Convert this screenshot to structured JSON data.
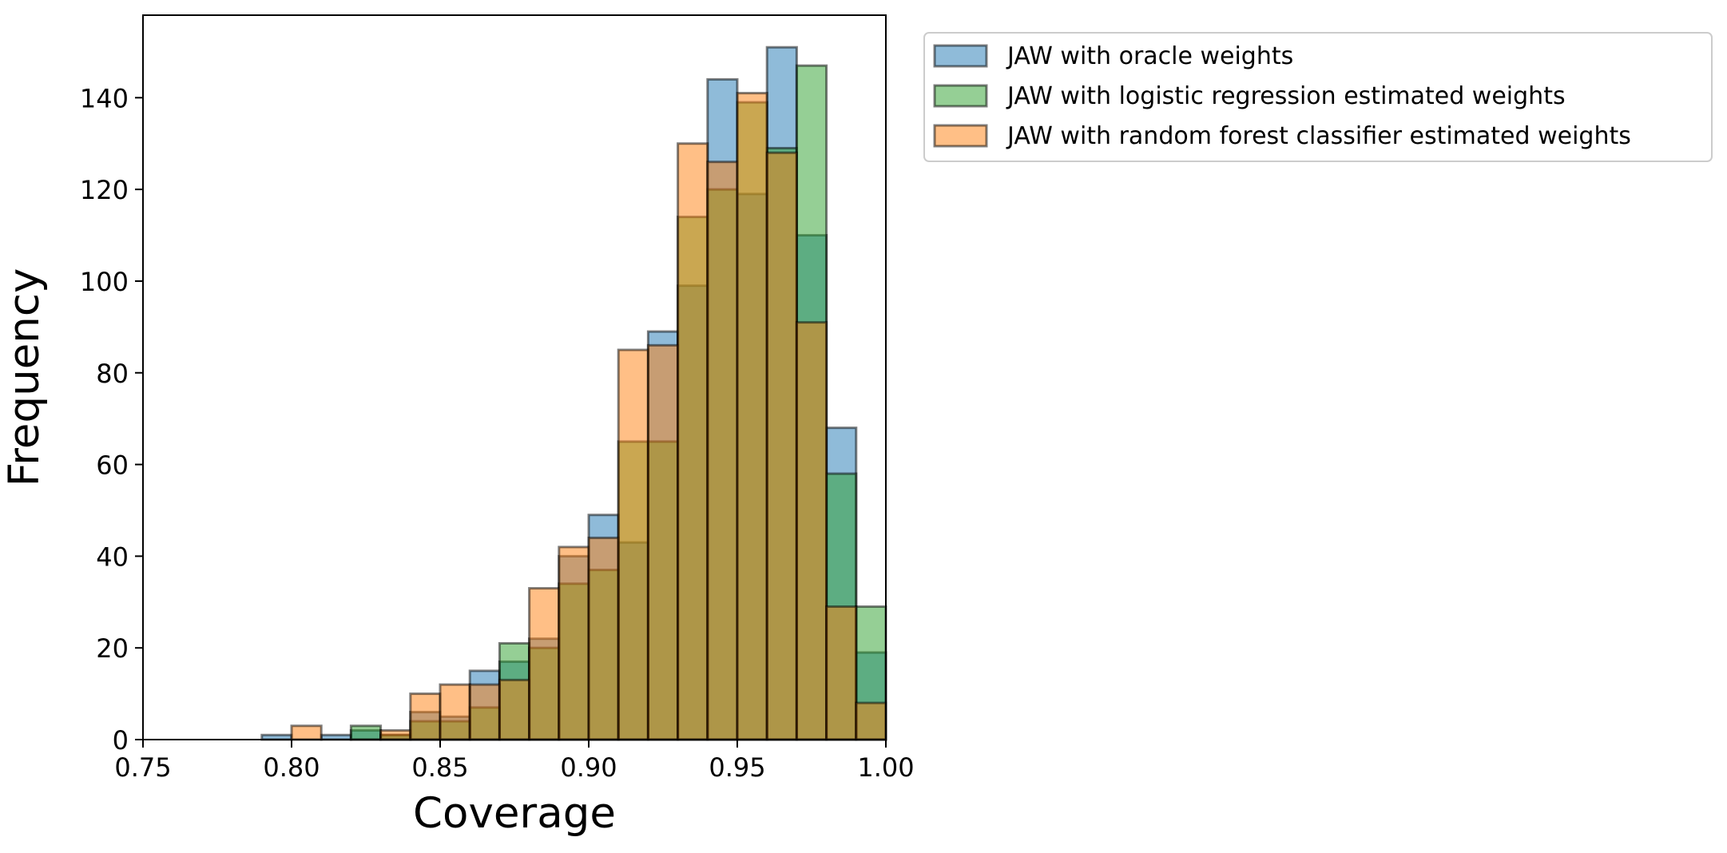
{
  "chart_data": {
    "type": "histogram",
    "title": "",
    "xlabel": "Coverage",
    "ylabel": "Frequency",
    "xlim": [
      0.75,
      1.0
    ],
    "ylim": [
      0,
      158
    ],
    "xticks": [
      0.75,
      0.8,
      0.85,
      0.9,
      0.95,
      1.0
    ],
    "xtick_labels": [
      "0.75",
      "0.80",
      "0.85",
      "0.90",
      "0.95",
      "1.00"
    ],
    "yticks": [
      0,
      20,
      40,
      60,
      80,
      100,
      120,
      140
    ],
    "ytick_labels": [
      "0",
      "20",
      "40",
      "60",
      "80",
      "100",
      "120",
      "140"
    ],
    "grid": false,
    "legend_position": "outside-top-right",
    "series": [
      {
        "name": "JAW with oracle weights",
        "color": "#1f77b4",
        "alpha": 0.5,
        "bins": [
          [
            0.79,
            0.8,
            1
          ],
          [
            0.81,
            0.82,
            1
          ],
          [
            0.82,
            0.83,
            2
          ],
          [
            0.83,
            0.84,
            1
          ],
          [
            0.84,
            0.85,
            6
          ],
          [
            0.85,
            0.86,
            5
          ],
          [
            0.86,
            0.87,
            15
          ],
          [
            0.87,
            0.88,
            17
          ],
          [
            0.88,
            0.89,
            22
          ],
          [
            0.89,
            0.9,
            40
          ],
          [
            0.9,
            0.91,
            49
          ],
          [
            0.91,
            0.92,
            43
          ],
          [
            0.92,
            0.93,
            89
          ],
          [
            0.93,
            0.94,
            99
          ],
          [
            0.94,
            0.95,
            144
          ],
          [
            0.95,
            0.96,
            119
          ],
          [
            0.96,
            0.97,
            151
          ],
          [
            0.97,
            0.98,
            110
          ],
          [
            0.98,
            0.99,
            68
          ],
          [
            0.99,
            1.0,
            19
          ]
        ]
      },
      {
        "name": "JAW with logistic regression estimated weights",
        "color": "#2ca02c",
        "alpha": 0.5,
        "bins": [
          [
            0.82,
            0.83,
            3
          ],
          [
            0.83,
            0.84,
            1
          ],
          [
            0.84,
            0.85,
            4
          ],
          [
            0.85,
            0.86,
            4
          ],
          [
            0.86,
            0.87,
            7
          ],
          [
            0.87,
            0.88,
            21
          ],
          [
            0.88,
            0.89,
            20
          ],
          [
            0.89,
            0.9,
            34
          ],
          [
            0.9,
            0.91,
            37
          ],
          [
            0.91,
            0.92,
            65
          ],
          [
            0.92,
            0.93,
            65
          ],
          [
            0.93,
            0.94,
            114
          ],
          [
            0.94,
            0.95,
            120
          ],
          [
            0.95,
            0.96,
            139
          ],
          [
            0.96,
            0.97,
            129
          ],
          [
            0.97,
            0.98,
            147
          ],
          [
            0.98,
            0.99,
            58
          ],
          [
            0.99,
            1.0,
            29
          ]
        ]
      },
      {
        "name": "JAW with random forest classifier estimated weights",
        "color": "#ff7f0e",
        "alpha": 0.5,
        "bins": [
          [
            0.8,
            0.81,
            3
          ],
          [
            0.83,
            0.84,
            2
          ],
          [
            0.84,
            0.85,
            10
          ],
          [
            0.85,
            0.86,
            12
          ],
          [
            0.86,
            0.87,
            12
          ],
          [
            0.87,
            0.88,
            13
          ],
          [
            0.88,
            0.89,
            33
          ],
          [
            0.89,
            0.9,
            42
          ],
          [
            0.9,
            0.91,
            44
          ],
          [
            0.91,
            0.92,
            85
          ],
          [
            0.92,
            0.93,
            86
          ],
          [
            0.93,
            0.94,
            130
          ],
          [
            0.94,
            0.95,
            126
          ],
          [
            0.95,
            0.96,
            141
          ],
          [
            0.96,
            0.97,
            128
          ],
          [
            0.97,
            0.98,
            91
          ],
          [
            0.98,
            0.99,
            29
          ],
          [
            0.99,
            1.0,
            8
          ]
        ]
      }
    ]
  }
}
